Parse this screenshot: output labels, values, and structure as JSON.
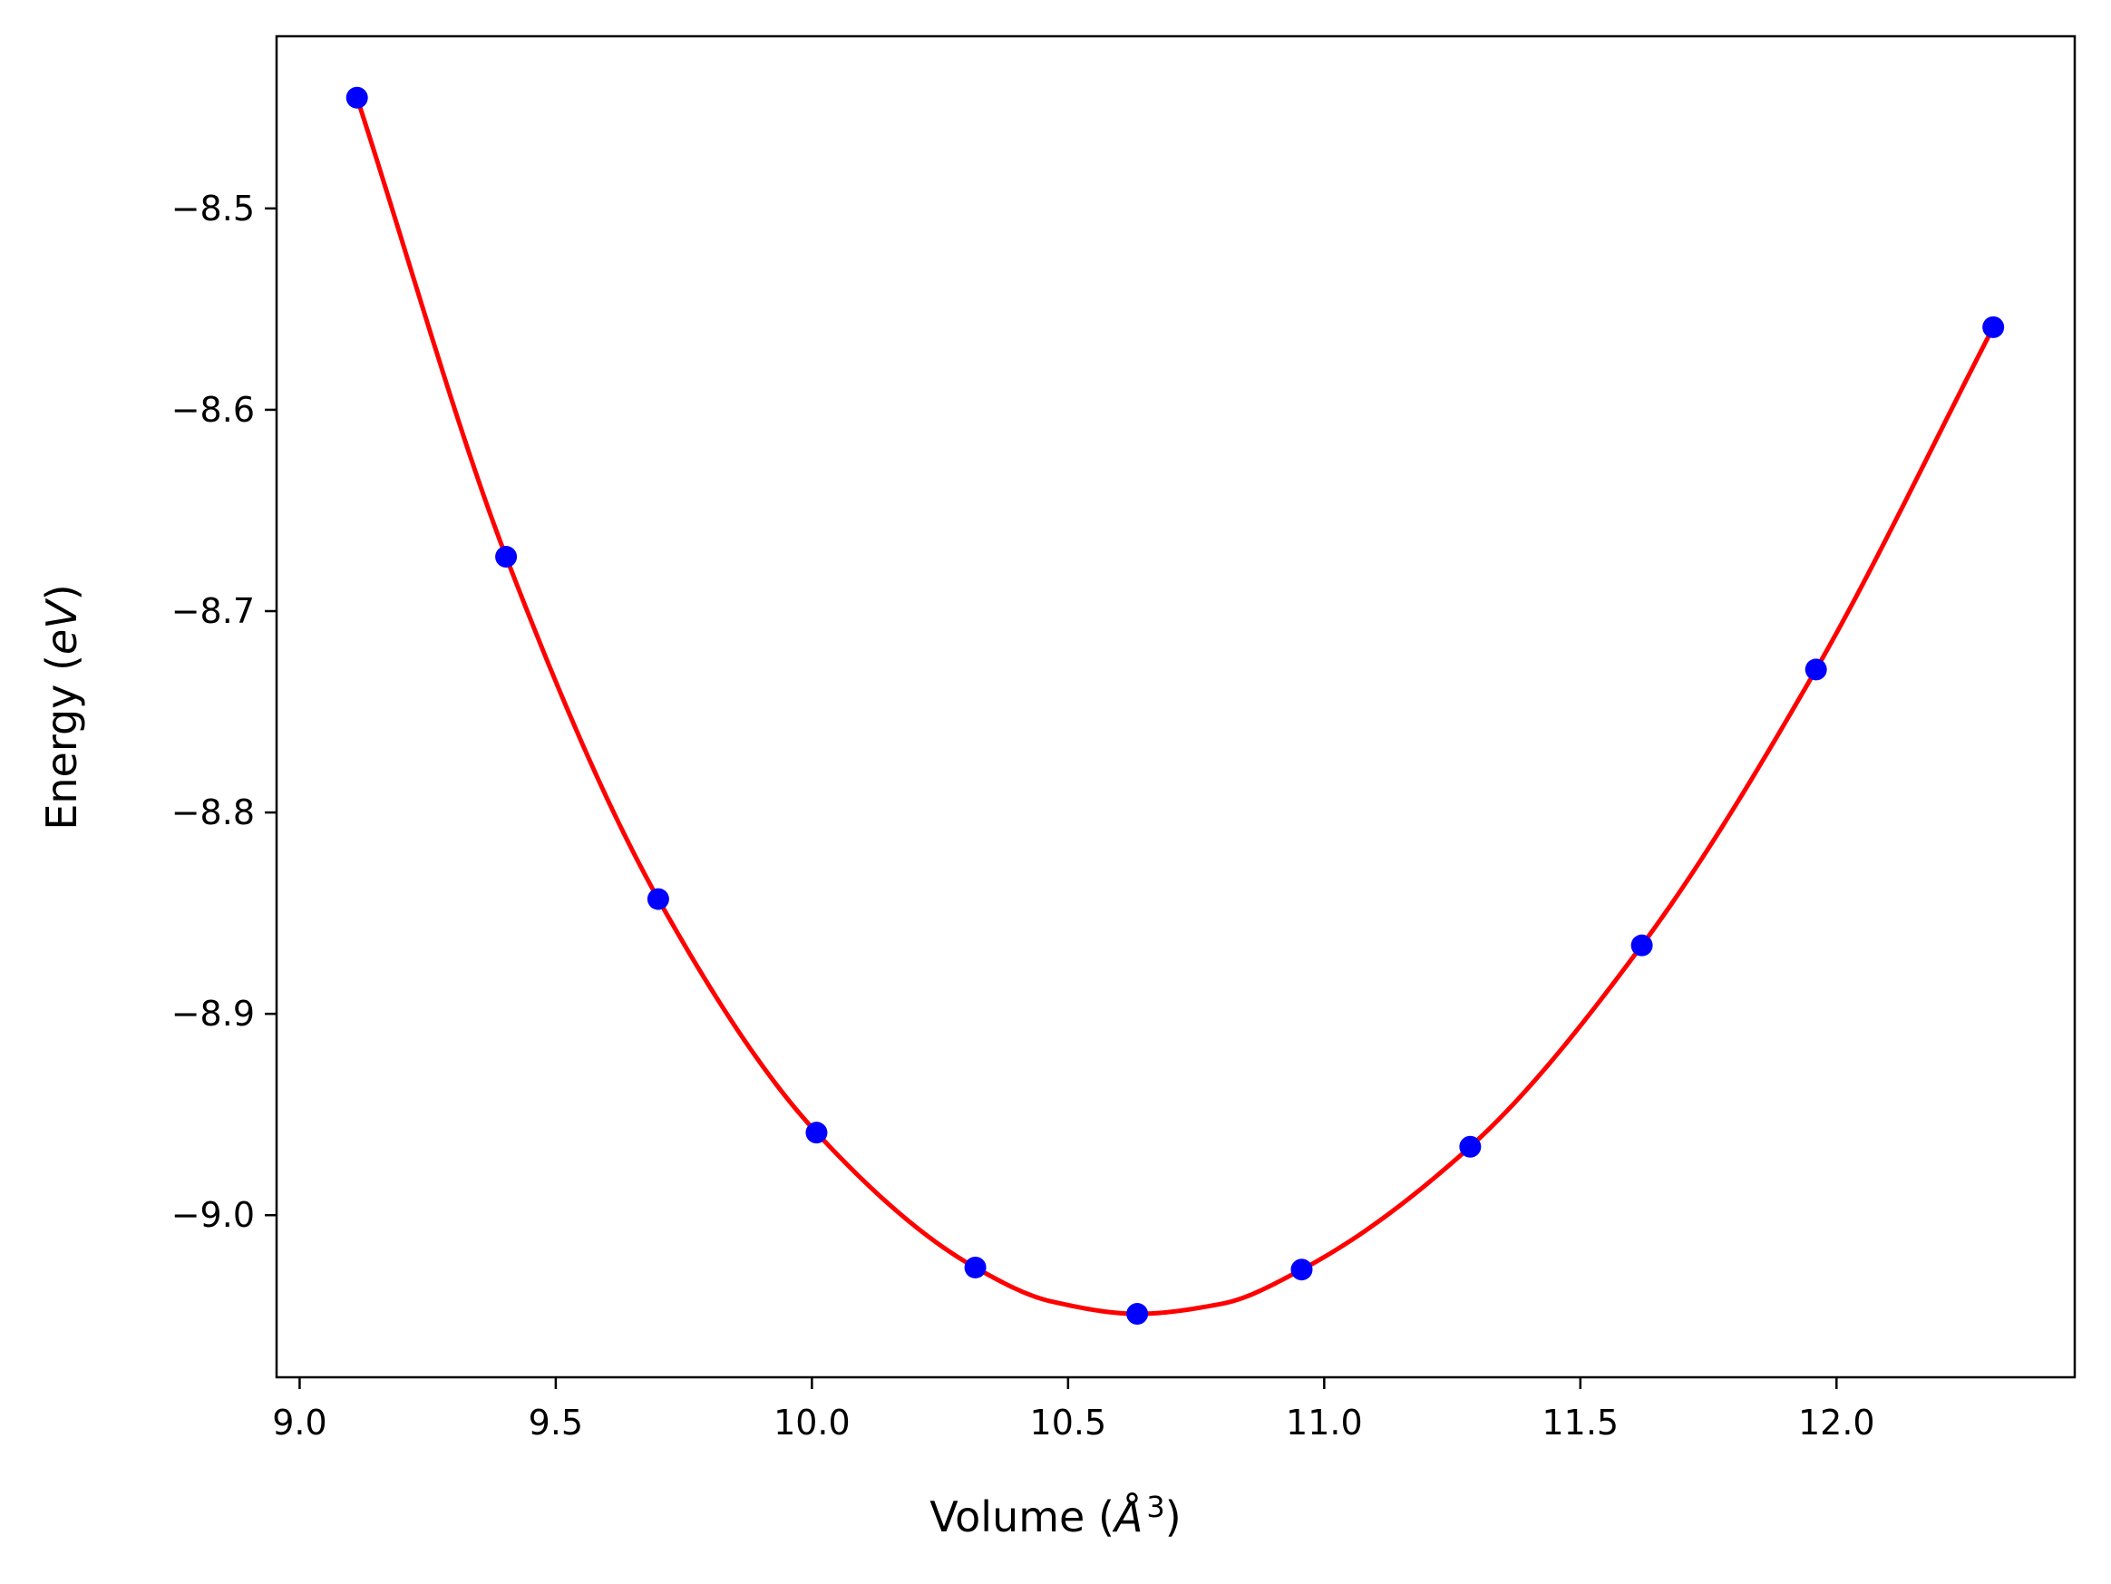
{
  "chart_data": {
    "type": "scatter",
    "title": "",
    "xlabel": "Volume",
    "xlabel_unit": "Å",
    "xlabel_unit_power": "3",
    "ylabel": "Energy",
    "ylabel_unit": "eV",
    "xlim": [
      8.955,
      12.465
    ],
    "ylim": [
      -9.0805,
      -8.4145
    ],
    "xticks": [
      9.0,
      9.5,
      10.0,
      10.5,
      11.0,
      11.5,
      12.0
    ],
    "xtick_labels": [
      "9.0",
      "9.5",
      "10.0",
      "10.5",
      "11.0",
      "11.5",
      "12.0"
    ],
    "yticks": [
      -9.0,
      -8.9,
      -8.8,
      -8.7,
      -8.6,
      -8.5
    ],
    "ytick_labels": [
      "−9.0",
      "−8.9",
      "−8.8",
      "−8.7",
      "−8.6",
      "−8.5"
    ],
    "grid": false,
    "legend": "none",
    "series": [
      {
        "kind": "scatter",
        "color": "#0000ff",
        "x": [
          9.112,
          9.403,
          9.7,
          10.009,
          10.319,
          10.635,
          10.956,
          11.285,
          11.62,
          11.96,
          12.306
        ],
        "y": [
          -8.445,
          -8.673,
          -8.843,
          -8.959,
          -9.026,
          -9.049,
          -9.027,
          -8.966,
          -8.866,
          -8.729,
          -8.559
        ]
      },
      {
        "kind": "line",
        "color": "#ff0000",
        "x": [
          9.112,
          9.403,
          9.7,
          10.009,
          10.319,
          10.47,
          10.635,
          10.8,
          10.956,
          11.285,
          11.62,
          11.96,
          12.306
        ],
        "y": [
          -8.445,
          -8.673,
          -8.843,
          -8.959,
          -9.026,
          -9.043,
          -9.049,
          -9.044,
          -9.027,
          -8.966,
          -8.866,
          -8.729,
          -8.559
        ]
      }
    ]
  }
}
